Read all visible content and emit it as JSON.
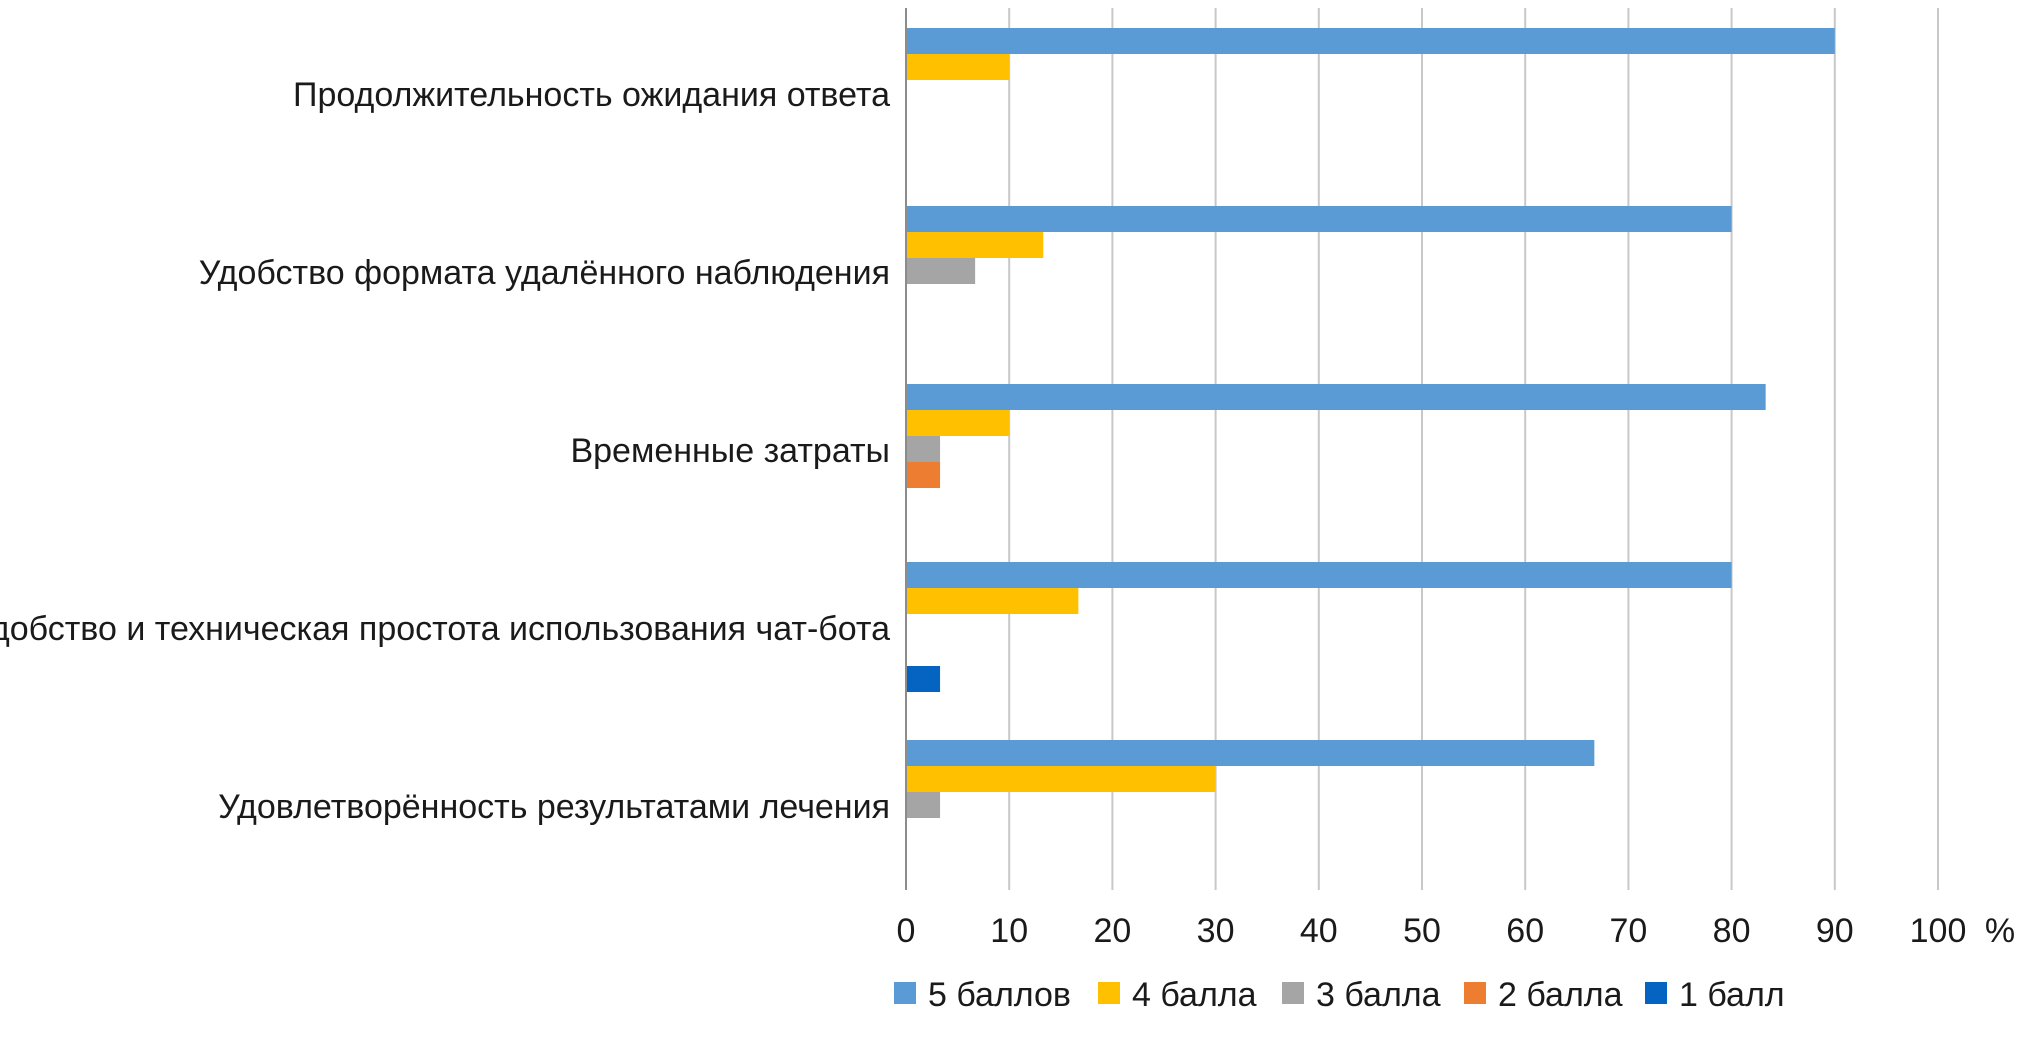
{
  "chart_data": {
    "type": "bar",
    "orientation": "horizontal",
    "unit": "%",
    "categories": [
      "Продолжительность ожидания ответа",
      "Удобство формата удалённого наблюдения",
      "Временные затраты",
      "Удобство и техническая простота использования чат-бота",
      "Удовлетворённость результатами лечения"
    ],
    "series": [
      {
        "name": "5 баллов",
        "color": "#5b9bd5",
        "values": [
          90,
          80,
          83.3,
          80,
          66.7
        ]
      },
      {
        "name": "4 балла",
        "color": "#ffc000",
        "values": [
          10,
          13.3,
          10,
          16.7,
          30
        ]
      },
      {
        "name": "3 балла",
        "color": "#a5a5a5",
        "values": [
          0,
          6.7,
          3.3,
          0,
          3.3
        ]
      },
      {
        "name": "2 балла",
        "color": "#ed7d31",
        "values": [
          0,
          0,
          3.3,
          0,
          0
        ]
      },
      {
        "name": "1 балл",
        "color": "#0563c1",
        "values": [
          0,
          0,
          0,
          3.3,
          0
        ]
      }
    ],
    "xlim": [
      0,
      100
    ],
    "ticks": [
      "0",
      "10",
      "20",
      "30",
      "40",
      "50",
      "60",
      "70",
      "80",
      "90",
      "100"
    ],
    "grid": true,
    "legend": "bottom"
  }
}
